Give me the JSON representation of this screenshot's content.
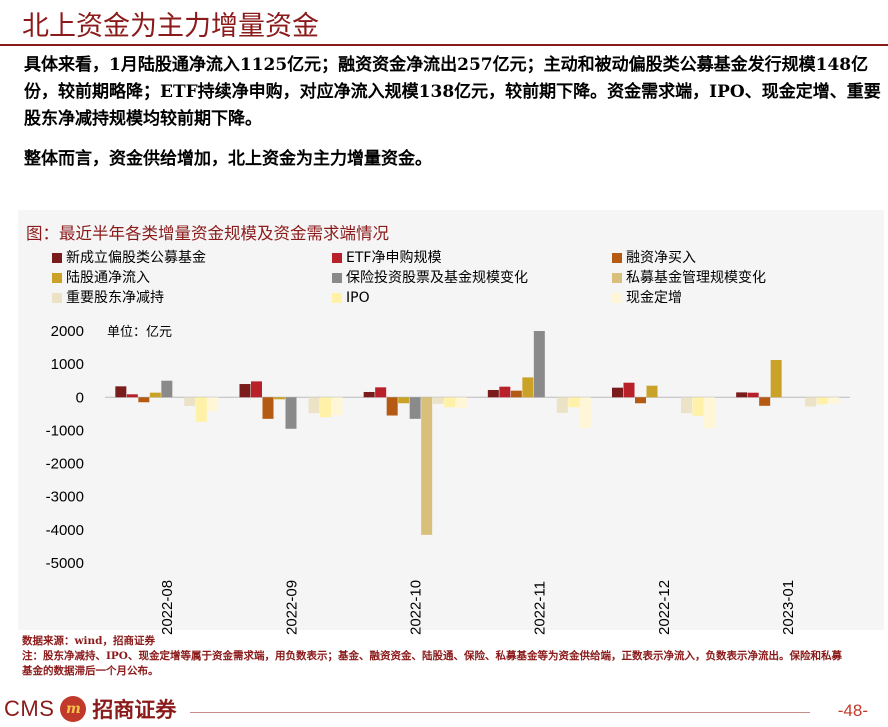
{
  "slide": {
    "title": "北上资金为主力增量资金",
    "paragraph1": "具体来看，1月陆股通净流入1125亿元；融资资金净流出257亿元；主动和被动偏股类公募基金发行规模148亿份，较前期略降；ETF持续净申购，对应净流入规模138亿元，较前期下降。资金需求端，IPO、现金定增、重要股东净减持规模均较前期下降。",
    "paragraph2": "整体而言，资金供给增加，北上资金为主力增量资金。",
    "chart_title": "图：最近半年各类增量资金规模及资金需求端情况",
    "unit_label": "单位：亿元",
    "source": "数据来源：wind，招商证券",
    "note": "注：股东净减持、IPO、现金定增等属于资金需求端，用负数表示；基金、融资资金、陆股通、保险、私募基金等为资金供给端，正数表示净流入，负数表示净流出。保险和私募基金的数据滞后一个月公布。",
    "logo_text": "CMS",
    "logo_mark": "m",
    "logo_cn": "招商证券",
    "page_number": "-48-"
  },
  "chart_data": {
    "type": "bar",
    "categories": [
      "2022-08",
      "2022-09",
      "2022-10",
      "2022-11",
      "2022-12",
      "2023-01"
    ],
    "ylim": [
      -5000,
      2000
    ],
    "yticks": [
      2000,
      1000,
      0,
      -1000,
      -2000,
      -3000,
      -4000,
      -5000
    ],
    "legend_position": "top",
    "series": [
      {
        "name": "新成立偏股类公募基金",
        "color": "#7a1c1c",
        "values": [
          330,
          400,
          160,
          220,
          290,
          148
        ]
      },
      {
        "name": "ETF净申购规模",
        "color": "#b8202a",
        "values": [
          90,
          480,
          300,
          320,
          440,
          138
        ]
      },
      {
        "name": "融资净买入",
        "color": "#b55a12",
        "values": [
          -150,
          -650,
          -550,
          200,
          -180,
          -257
        ]
      },
      {
        "name": "陆股通净流入",
        "color": "#c9a227",
        "values": [
          140,
          -60,
          -180,
          600,
          350,
          1125
        ]
      },
      {
        "name": "保险投资股票及基金规模变化",
        "color": "#8a8a8a",
        "values": [
          500,
          -950,
          -650,
          2000,
          null,
          null
        ]
      },
      {
        "name": "私募基金管理规模变化",
        "color": "#d9c07a",
        "values": [
          null,
          null,
          -4150,
          null,
          null,
          null
        ]
      },
      {
        "name": "重要股东净减持",
        "color": "#ece2c6",
        "values": [
          -260,
          -480,
          -200,
          -470,
          -480,
          -280
        ]
      },
      {
        "name": "IPO",
        "color": "#fff1a8",
        "values": [
          -740,
          -600,
          -300,
          -300,
          -560,
          -210
        ]
      },
      {
        "name": "现金定增",
        "color": "#fff6d8",
        "values": [
          -420,
          -540,
          -330,
          -920,
          -930,
          -190
        ]
      }
    ]
  }
}
